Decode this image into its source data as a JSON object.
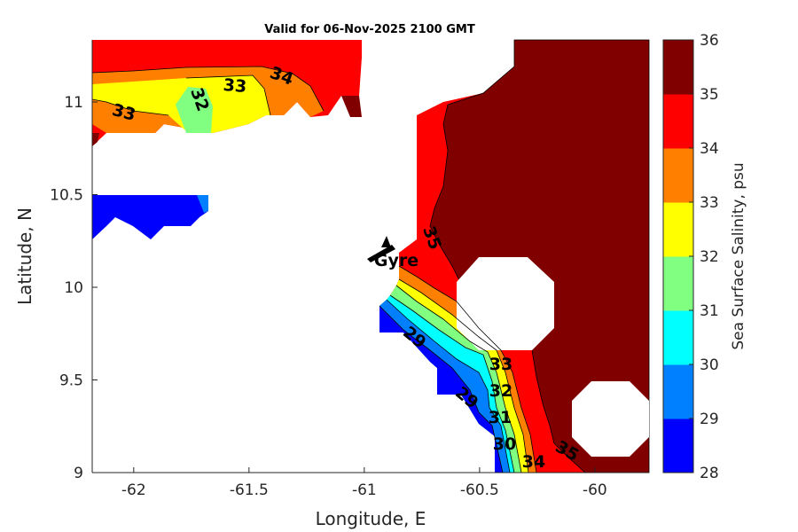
{
  "chart_data": {
    "type": "contourf",
    "title": "Valid for 06-Nov-2025 2100 GMT",
    "xlabel": "Longitude, E",
    "ylabel": "Latitude, N",
    "xlim": [
      -62.18,
      -59.765
    ],
    "ylim": [
      9.0,
      11.335
    ],
    "xticks": [
      -62,
      -61.5,
      -61,
      -60.5,
      -60
    ],
    "xtick_labels": [
      "-62",
      "-61.5",
      "-61",
      "-60.5",
      "-60"
    ],
    "yticks": [
      9,
      9.5,
      10,
      10.5,
      11
    ],
    "ytick_labels": [
      "9",
      "9.5",
      "10",
      "10.5",
      "11"
    ],
    "colorbar": {
      "label": "Sea Surface Salinity, psu",
      "range": [
        28,
        36
      ],
      "ticks": [
        "28",
        "29",
        "30",
        "31",
        "32",
        "33",
        "34",
        "35",
        "36"
      ],
      "colors": [
        "#0000ff",
        "#0080ff",
        "#00ffff",
        "#80ff80",
        "#ffff00",
        "#ff8000",
        "#ff0000",
        "#800000"
      ]
    },
    "contour_labels": [
      "33",
      "33",
      "34",
      "32",
      "35",
      "29",
      "29",
      "30",
      "31",
      "32",
      "33",
      "34",
      "35"
    ],
    "annotation": "Gyre",
    "grid": false
  }
}
